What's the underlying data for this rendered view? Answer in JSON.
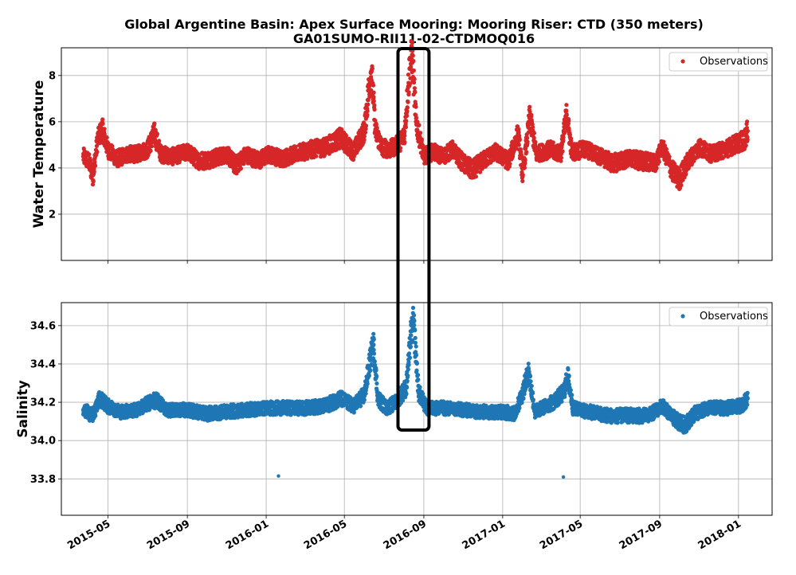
{
  "chart_data": {
    "title_line1": "Global Argentine Basin: Apex Surface Mooring: Mooring Riser: CTD (350 meters)",
    "title_line2": "GA01SUMO-RII11-02-CTDMOQ016",
    "type": "scatter",
    "x_axis": {
      "type": "date",
      "range": [
        "2015-02-18",
        "2018-02-22"
      ],
      "tick_labels": [
        "2015-05",
        "2015-09",
        "2016-01",
        "2016-05",
        "2016-09",
        "2017-01",
        "2017-05",
        "2017-09",
        "2018-01"
      ],
      "tick_dates": [
        "2015-05-01",
        "2015-09-01",
        "2016-01-01",
        "2016-05-01",
        "2016-09-01",
        "2017-01-01",
        "2017-05-01",
        "2017-09-01",
        "2018-01-01"
      ]
    },
    "grid": true,
    "highlight_box": {
      "x_start": "2016-07-23",
      "x_end": "2016-09-09",
      "spans": "both panels"
    },
    "panels": [
      {
        "name": "temperature",
        "ylabel": "Water Temperature",
        "ylim": [
          0,
          9.2
        ],
        "yticks": [
          "2",
          "4",
          "6",
          "8"
        ],
        "legend": "Observations",
        "legend_position": "top-right",
        "color": "#d62728",
        "series_points": [
          [
            "2015-03-24",
            4.5
          ],
          [
            "2015-04-01",
            4.3
          ],
          [
            "2015-04-08",
            3.7
          ],
          [
            "2015-04-15",
            5.2
          ],
          [
            "2015-04-22",
            5.7
          ],
          [
            "2015-05-01",
            4.8
          ],
          [
            "2015-05-15",
            4.4
          ],
          [
            "2015-06-01",
            4.6
          ],
          [
            "2015-06-15",
            4.6
          ],
          [
            "2015-07-01",
            4.8
          ],
          [
            "2015-07-12",
            5.5
          ],
          [
            "2015-07-22",
            4.6
          ],
          [
            "2015-08-10",
            4.5
          ],
          [
            "2015-09-01",
            4.7
          ],
          [
            "2015-09-20",
            4.3
          ],
          [
            "2015-10-10",
            4.4
          ],
          [
            "2015-11-01",
            4.6
          ],
          [
            "2015-11-15",
            4.1
          ],
          [
            "2015-12-01",
            4.6
          ],
          [
            "2015-12-20",
            4.3
          ],
          [
            "2016-01-05",
            4.6
          ],
          [
            "2016-01-25",
            4.4
          ],
          [
            "2016-02-15",
            4.6
          ],
          [
            "2016-03-10",
            4.8
          ],
          [
            "2016-04-01",
            4.9
          ],
          [
            "2016-04-25",
            5.3
          ],
          [
            "2016-05-15",
            4.7
          ],
          [
            "2016-06-01",
            5.6
          ],
          [
            "2016-06-08",
            7.5
          ],
          [
            "2016-06-12",
            8.2
          ],
          [
            "2016-06-18",
            5.6
          ],
          [
            "2016-06-28",
            4.9
          ],
          [
            "2016-07-10",
            4.8
          ],
          [
            "2016-07-22",
            5.0
          ],
          [
            "2016-08-02",
            5.4
          ],
          [
            "2016-08-10",
            8.3
          ],
          [
            "2016-08-14",
            8.9
          ],
          [
            "2016-08-20",
            6.0
          ],
          [
            "2016-09-01",
            4.5
          ],
          [
            "2016-09-15",
            4.7
          ],
          [
            "2016-10-01",
            4.5
          ],
          [
            "2016-10-15",
            4.8
          ],
          [
            "2016-11-01",
            4.2
          ],
          [
            "2016-11-15",
            3.9
          ],
          [
            "2016-12-01",
            4.3
          ],
          [
            "2016-12-20",
            4.7
          ],
          [
            "2017-01-10",
            4.3
          ],
          [
            "2017-01-25",
            5.5
          ],
          [
            "2017-02-01",
            3.7
          ],
          [
            "2017-02-12",
            6.2
          ],
          [
            "2017-02-22",
            4.6
          ],
          [
            "2017-03-15",
            4.8
          ],
          [
            "2017-04-01",
            4.6
          ],
          [
            "2017-04-10",
            6.3
          ],
          [
            "2017-04-18",
            4.7
          ],
          [
            "2017-05-10",
            4.8
          ],
          [
            "2017-06-01",
            4.5
          ],
          [
            "2017-06-20",
            4.2
          ],
          [
            "2017-07-15",
            4.4
          ],
          [
            "2017-08-05",
            4.3
          ],
          [
            "2017-08-25",
            4.2
          ],
          [
            "2017-09-05",
            4.9
          ],
          [
            "2017-09-20",
            3.9
          ],
          [
            "2017-10-01",
            3.5
          ],
          [
            "2017-10-15",
            4.3
          ],
          [
            "2017-11-01",
            4.9
          ],
          [
            "2017-11-20",
            4.6
          ],
          [
            "2017-12-10",
            4.8
          ],
          [
            "2018-01-01",
            5.1
          ],
          [
            "2018-01-10",
            5.2
          ],
          [
            "2018-01-15",
            5.6
          ]
        ]
      },
      {
        "name": "salinity",
        "ylabel": "Salinity",
        "ylim": [
          33.61,
          34.72
        ],
        "yticks": [
          "33.8",
          "34.0",
          "34.2",
          "34.4",
          "34.6"
        ],
        "legend": "Observations",
        "legend_position": "top-right",
        "color": "#1f77b4",
        "series_points": [
          [
            "2015-03-24",
            34.16
          ],
          [
            "2015-04-08",
            34.13
          ],
          [
            "2015-04-18",
            34.22
          ],
          [
            "2015-05-01",
            34.18
          ],
          [
            "2015-05-20",
            34.15
          ],
          [
            "2015-06-15",
            34.16
          ],
          [
            "2015-07-05",
            34.2
          ],
          [
            "2015-07-15",
            34.21
          ],
          [
            "2015-08-01",
            34.16
          ],
          [
            "2015-09-01",
            34.16
          ],
          [
            "2015-10-01",
            34.14
          ],
          [
            "2015-11-01",
            34.15
          ],
          [
            "2015-12-01",
            34.16
          ],
          [
            "2016-01-01",
            34.17
          ],
          [
            "2016-02-01",
            34.17
          ],
          [
            "2016-03-01",
            34.17
          ],
          [
            "2016-04-01",
            34.18
          ],
          [
            "2016-04-25",
            34.22
          ],
          [
            "2016-05-15",
            34.18
          ],
          [
            "2016-06-01",
            34.24
          ],
          [
            "2016-06-10",
            34.42
          ],
          [
            "2016-06-15",
            34.5
          ],
          [
            "2016-06-22",
            34.22
          ],
          [
            "2016-07-05",
            34.17
          ],
          [
            "2016-07-20",
            34.2
          ],
          [
            "2016-08-05",
            34.28
          ],
          [
            "2016-08-12",
            34.55
          ],
          [
            "2016-08-16",
            34.62
          ],
          [
            "2016-08-24",
            34.25
          ],
          [
            "2016-09-05",
            34.17
          ],
          [
            "2016-10-01",
            34.17
          ],
          [
            "2016-11-01",
            34.16
          ],
          [
            "2016-12-01",
            34.15
          ],
          [
            "2017-01-01",
            34.15
          ],
          [
            "2017-01-20",
            34.14
          ],
          [
            "2017-02-01",
            34.25
          ],
          [
            "2017-02-10",
            34.36
          ],
          [
            "2017-02-20",
            34.15
          ],
          [
            "2017-03-20",
            34.2
          ],
          [
            "2017-04-05",
            34.25
          ],
          [
            "2017-04-12",
            34.33
          ],
          [
            "2017-04-20",
            34.17
          ],
          [
            "2017-05-15",
            34.15
          ],
          [
            "2017-06-15",
            34.13
          ],
          [
            "2017-07-15",
            34.13
          ],
          [
            "2017-08-15",
            34.13
          ],
          [
            "2017-09-05",
            34.18
          ],
          [
            "2017-09-25",
            34.11
          ],
          [
            "2017-10-10",
            34.08
          ],
          [
            "2017-10-25",
            34.14
          ],
          [
            "2017-11-15",
            34.17
          ],
          [
            "2017-12-15",
            34.17
          ],
          [
            "2018-01-05",
            34.18
          ],
          [
            "2018-01-15",
            34.22
          ]
        ],
        "outliers": [
          [
            "2016-01-20",
            33.815
          ],
          [
            "2017-04-05",
            33.81
          ]
        ]
      }
    ]
  }
}
